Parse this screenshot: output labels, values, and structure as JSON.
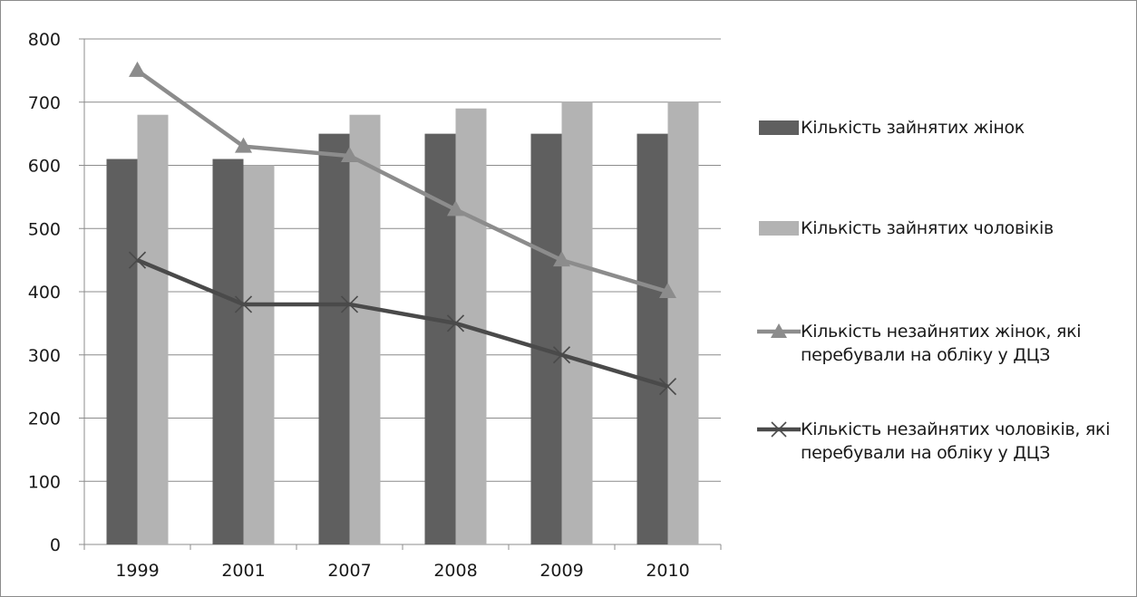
{
  "chart_data": {
    "type": "bar",
    "title": "",
    "xlabel": "",
    "ylabel": "",
    "categories": [
      "1999",
      "2001",
      "2007",
      "2008",
      "2009",
      "2010"
    ],
    "ylim": [
      0,
      800
    ],
    "yticks": [
      0,
      100,
      200,
      300,
      400,
      500,
      600,
      700,
      800
    ],
    "grid": true,
    "legend_position": "right",
    "series": [
      {
        "name": "Кількість зайнятих жінок",
        "kind": "bar",
        "color": "#5f5f5f",
        "values": [
          610,
          610,
          650,
          650,
          650,
          650
        ]
      },
      {
        "name": "Кількість зайнятих чоловіків",
        "kind": "bar",
        "color": "#b3b3b3",
        "values": [
          680,
          600,
          680,
          690,
          700,
          700
        ]
      },
      {
        "name": "Кількість незайнятих жінок, які перебували на обліку у ДЦЗ",
        "kind": "line",
        "marker": "triangle",
        "color": "#8c8c8c",
        "values": [
          750,
          630,
          615,
          530,
          450,
          400
        ]
      },
      {
        "name": "Кількість незайнятих чоловіків, які перебували на обліку у ДЦЗ",
        "kind": "line",
        "marker": "x",
        "color": "#4a4a4a",
        "values": [
          450,
          380,
          380,
          350,
          300,
          250
        ]
      }
    ]
  }
}
